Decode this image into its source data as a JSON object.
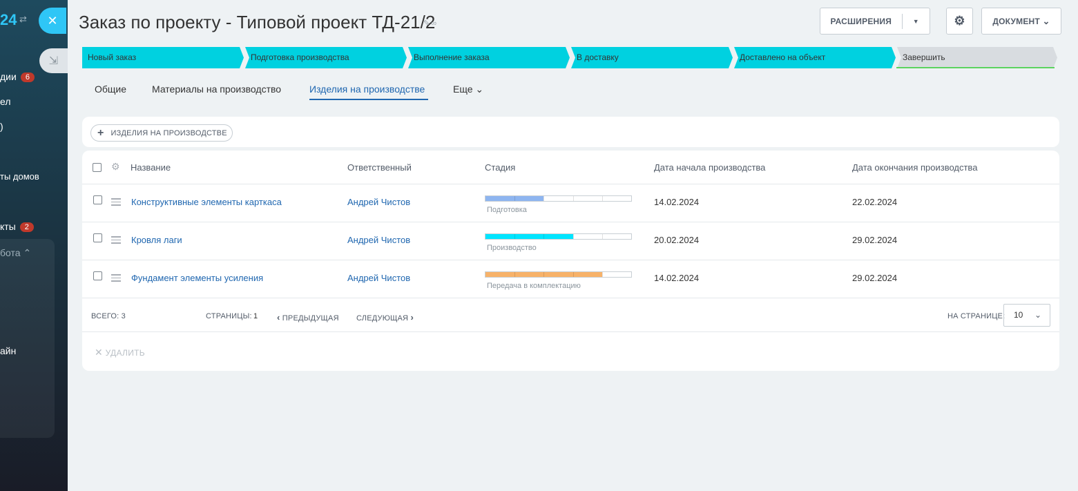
{
  "sidebar": {
    "logo": "24",
    "items": [
      {
        "label": "дии",
        "badge": "6"
      },
      {
        "label": "ел"
      },
      {
        "label": ")"
      },
      {
        "label": "ты домов"
      },
      {
        "label": "кты",
        "badge": "2"
      },
      {
        "label": "айн"
      }
    ],
    "group_label": "бота"
  },
  "header": {
    "title": "Заказ по проекту - Типовой проект ТД-21/2",
    "extensions_label": "РАСШИРЕНИЯ",
    "document_label": "ДОКУМЕНТ"
  },
  "stages": [
    {
      "label": "Новый заказ"
    },
    {
      "label": "Подготовка производства"
    },
    {
      "label": "Выполнение заказа"
    },
    {
      "label": "В доставку"
    },
    {
      "label": "Доставлено на объект"
    },
    {
      "label": "Завершить"
    }
  ],
  "tabs": [
    {
      "label": "Общие"
    },
    {
      "label": "Материалы на производство"
    },
    {
      "label": "Изделия на производстве"
    },
    {
      "label": "Еще"
    }
  ],
  "toolbar": {
    "add_label": "ИЗДЕЛИЯ НА ПРОИЗВОДСТВЕ"
  },
  "grid": {
    "columns": [
      "Название",
      "Ответственный",
      "Стадия",
      "Дата начала производства",
      "Дата окончания производства"
    ],
    "rows": [
      {
        "name": "Конструктивные элементы карткаса",
        "responsible": "Андрей Чистов",
        "stage": "Подготовка",
        "stage_progress": 0.4,
        "stage_color": "#8eb5f0",
        "start": "14.02.2024",
        "end": "22.02.2024"
      },
      {
        "name": "Кровля лаги",
        "responsible": "Андрей Чистов",
        "stage": "Производство",
        "stage_progress": 0.6,
        "stage_color": "#00e5ff",
        "start": "20.02.2024",
        "end": "29.02.2024"
      },
      {
        "name": "Фундамент элементы усиления",
        "responsible": "Андрей Чистов",
        "stage": "Передача в комплектацию",
        "stage_progress": 0.8,
        "stage_color": "#f7b26a",
        "start": "14.02.2024",
        "end": "29.02.2024"
      }
    ]
  },
  "footer": {
    "total": "ВСЕГО: 3",
    "pages_label": "СТРАНИЦЫ:",
    "current_page": "1",
    "prev_label": "ПРЕДЫДУЩАЯ",
    "next_label": "СЛЕДУЮЩАЯ",
    "per_page_label": "НА СТРАНИЦЕ:",
    "per_page_value": "10"
  },
  "actions": {
    "delete_label": "УДАЛИТЬ"
  }
}
